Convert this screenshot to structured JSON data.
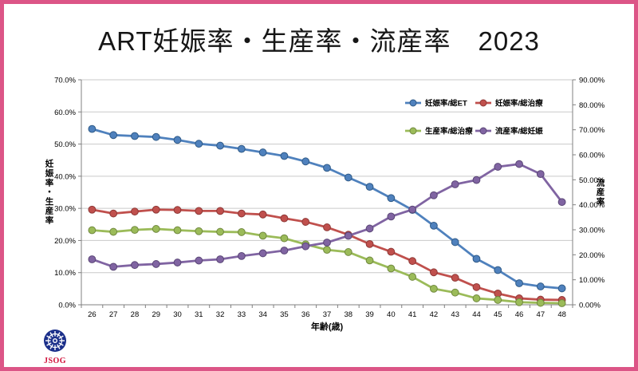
{
  "title": "ART妊娠率・生産率・流産率　2023",
  "frame": {
    "border_color": "#dc5587",
    "background": "#ffffff"
  },
  "logo": {
    "text": "JSOG",
    "text_color": "#d0103a",
    "emblem_color": "#1b2f8a"
  },
  "chart_data": {
    "type": "line",
    "x": [
      26,
      27,
      28,
      29,
      30,
      31,
      32,
      33,
      34,
      35,
      36,
      37,
      38,
      39,
      40,
      41,
      42,
      43,
      44,
      45,
      46,
      47,
      48
    ],
    "xtick_labels": [
      "26",
      "27",
      "28",
      "29",
      "30",
      "31",
      "32",
      "33",
      "34",
      "35",
      "36",
      "37",
      "38",
      "39",
      "40",
      "41",
      "42",
      "43",
      "44",
      "45",
      "46",
      "47",
      "48"
    ],
    "xlabel": "年齢(歳)",
    "ylabel_left": "妊娠率・生産率",
    "ylabel_right": "流産率",
    "ylim_left": [
      0,
      70
    ],
    "ylim_right": [
      0,
      90
    ],
    "yticks_left": [
      "70.0%",
      "60.0%",
      "50.0%",
      "40.0%",
      "30.0%",
      "20.0%",
      "10.0%",
      "0.0%"
    ],
    "yticks_right": [
      "90.00%",
      "80.00%",
      "70.00%",
      "60.00%",
      "50.00%",
      "40.00%",
      "30.00%",
      "20.00%",
      "10.00%",
      "0.00%"
    ],
    "grid": true,
    "gridline_color": "#c9c9c9",
    "axis_line_color": "#808080",
    "legend_position": "inside-top-right",
    "series": [
      {
        "name": "妊娠率/総ET",
        "axis": "left",
        "color": "#4f81bd",
        "edge": "#2f5a87",
        "values": [
          54.7,
          52.8,
          52.5,
          52.2,
          51.3,
          50.1,
          49.5,
          48.5,
          47.4,
          46.3,
          44.6,
          42.6,
          39.6,
          36.7,
          33.2,
          29.5,
          24.6,
          19.5,
          14.3,
          10.8,
          6.7,
          5.7,
          5.1
        ]
      },
      {
        "name": "妊娠率/総治療",
        "axis": "left",
        "color": "#c0504d",
        "edge": "#8e3836",
        "values": [
          29.6,
          28.4,
          29.0,
          29.6,
          29.5,
          29.2,
          29.2,
          28.4,
          28.1,
          26.9,
          25.8,
          24.1,
          21.8,
          18.9,
          16.5,
          13.6,
          10.1,
          8.4,
          5.5,
          3.5,
          2.0,
          1.6,
          1.5
        ]
      },
      {
        "name": "生産率/総治療",
        "axis": "left",
        "color": "#9bbb59",
        "edge": "#71893f",
        "values": [
          23.2,
          22.7,
          23.3,
          23.6,
          23.2,
          22.9,
          22.7,
          22.6,
          21.5,
          20.7,
          18.8,
          17.1,
          16.4,
          13.8,
          11.3,
          8.7,
          5.0,
          3.8,
          2.0,
          1.5,
          0.8,
          0.6,
          0.5
        ]
      },
      {
        "name": "流産率/総妊娠",
        "axis": "right",
        "color": "#8064a2",
        "edge": "#5a4676",
        "values": [
          18.2,
          15.2,
          15.9,
          16.3,
          16.9,
          17.7,
          18.2,
          19.5,
          20.6,
          21.7,
          23.4,
          24.9,
          27.6,
          30.5,
          35.3,
          38.1,
          43.8,
          48.2,
          49.9,
          55.2,
          56.3,
          52.3,
          41.1
        ]
      }
    ]
  }
}
